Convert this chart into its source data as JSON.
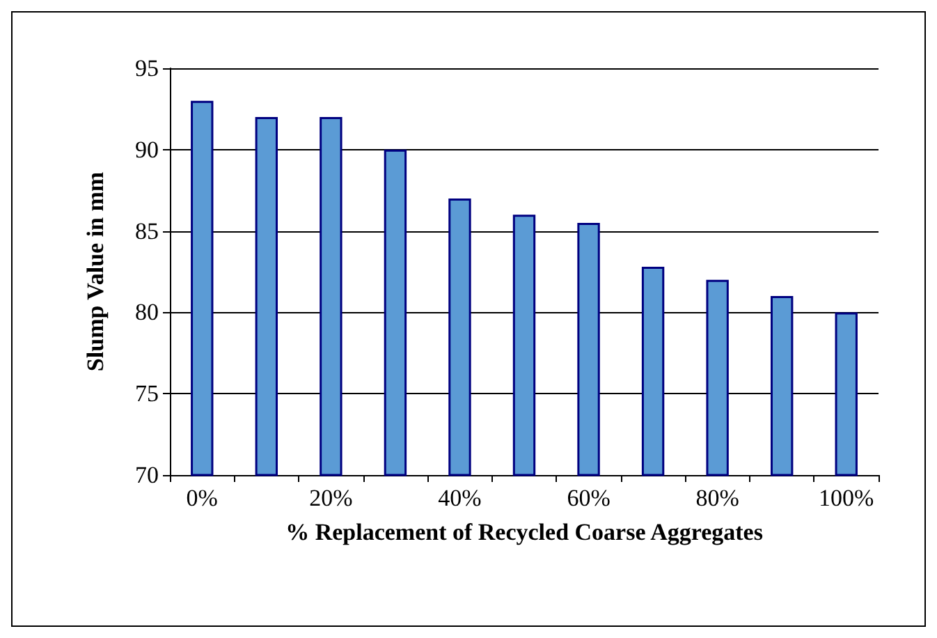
{
  "chart_data": {
    "type": "bar",
    "xlabel": "% Replacement of Recycled Coarse Aggregates",
    "ylabel": "Slump Value in mm",
    "categories": [
      "0%",
      null,
      "20%",
      null,
      "40%",
      null,
      "60%",
      null,
      "80%",
      null,
      "100%"
    ],
    "values": [
      93,
      92,
      92,
      90,
      87,
      86,
      85.5,
      82.8,
      82,
      81,
      80
    ],
    "color": "#5b9bd5",
    "ylim": [
      70,
      95
    ],
    "yticks": [
      70,
      75,
      80,
      85,
      90,
      95
    ],
    "grid": "y"
  }
}
